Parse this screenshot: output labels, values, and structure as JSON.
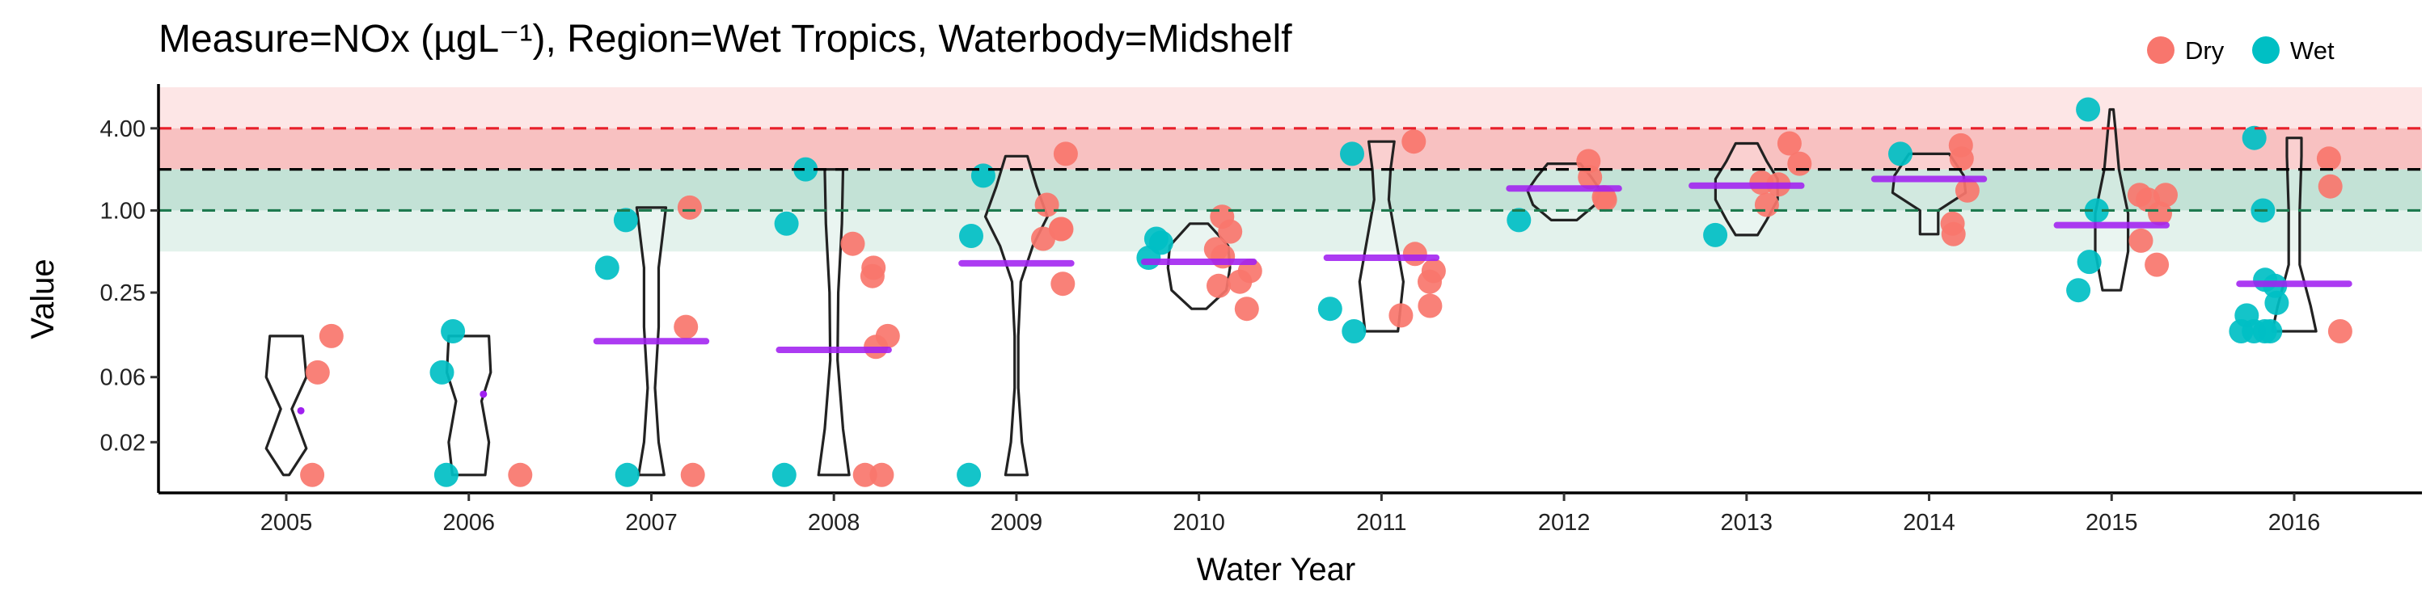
{
  "chart_data": {
    "type": "scatter",
    "title": "Measure=NOx (µgL⁻¹), Region=Wet Tropics, Waterbody=Midshelf",
    "xlabel": "Water Year",
    "ylabel": "Value",
    "y_scale": "log2",
    "ylim": [
      0.0085,
      8.0
    ],
    "y_ticks": [
      0.02,
      0.06,
      0.25,
      1.0,
      4.0
    ],
    "y_tick_labels": [
      "0.02",
      "0.06",
      "0.25",
      "1.00",
      "4.00"
    ],
    "categories": [
      "2005",
      "2006",
      "2007",
      "2008",
      "2009",
      "2010",
      "2011",
      "2012",
      "2013",
      "2014",
      "2015",
      "2016"
    ],
    "legend": {
      "position": "top-right",
      "entries": [
        "Dry",
        "Wet"
      ]
    },
    "colors": {
      "Dry": "#F8766D",
      "Wet": "#00BFC4",
      "mean": "#A020F0",
      "violin": "#222222",
      "band_red": "#F8C4C4",
      "band_green": "#CBE6DC",
      "line_red": "#E8202A",
      "line_black": "#000000",
      "line_green": "#1E7A4F"
    },
    "reference_lines": [
      {
        "value": 4.0,
        "style": "dashed",
        "color": "red"
      },
      {
        "value": 2.0,
        "style": "dashed",
        "color": "black"
      },
      {
        "value": 1.0,
        "style": "dashed",
        "color": "green"
      }
    ],
    "bands": [
      {
        "from": 2.0,
        "to": 8.0,
        "color": "light-red"
      },
      {
        "from": 2.0,
        "to": 4.0,
        "color": "red"
      },
      {
        "from": 1.0,
        "to": 2.0,
        "color": "green"
      },
      {
        "from": 0.5,
        "to": 1.0,
        "color": "light-green"
      }
    ],
    "series": [
      {
        "name": "Dry",
        "points": [
          [
            "2005",
            0.12
          ],
          [
            "2005",
            0.065
          ],
          [
            "2005",
            0.0115
          ],
          [
            "2006",
            0.0115
          ],
          [
            "2007",
            1.05
          ],
          [
            "2007",
            0.14
          ],
          [
            "2007",
            0.0115
          ],
          [
            "2008",
            0.38
          ],
          [
            "2008",
            0.33
          ],
          [
            "2008",
            0.12
          ],
          [
            "2008",
            0.1
          ],
          [
            "2008",
            0.57
          ],
          [
            "2008",
            0.0115
          ],
          [
            "2008",
            0.0115
          ],
          [
            "2009",
            2.6
          ],
          [
            "2009",
            1.1
          ],
          [
            "2009",
            0.73
          ],
          [
            "2009",
            0.73
          ],
          [
            "2009",
            0.62
          ],
          [
            "2009",
            0.29
          ],
          [
            "2010",
            0.9
          ],
          [
            "2010",
            0.46
          ],
          [
            "2010",
            0.36
          ],
          [
            "2010",
            0.3
          ],
          [
            "2010",
            0.7
          ],
          [
            "2010",
            0.52
          ],
          [
            "2010",
            0.28
          ],
          [
            "2010",
            0.19
          ],
          [
            "2011",
            3.2
          ],
          [
            "2011",
            0.48
          ],
          [
            "2011",
            0.2
          ],
          [
            "2011",
            0.17
          ],
          [
            "2011",
            0.36
          ],
          [
            "2011",
            0.3
          ],
          [
            "2012",
            2.3
          ],
          [
            "2012",
            1.75
          ],
          [
            "2012",
            1.2
          ],
          [
            "2012",
            1.25
          ],
          [
            "2013",
            3.1
          ],
          [
            "2013",
            2.2
          ],
          [
            "2013",
            1.6
          ],
          [
            "2013",
            1.1
          ],
          [
            "2013",
            1.55
          ],
          [
            "2014",
            3.0
          ],
          [
            "2014",
            2.4
          ],
          [
            "2014",
            0.8
          ],
          [
            "2014",
            1.4
          ],
          [
            "2014",
            0.67
          ],
          [
            "2015",
            0.6
          ],
          [
            "2015",
            0.4
          ],
          [
            "2015",
            1.3
          ],
          [
            "2015",
            1.2
          ],
          [
            "2015",
            0.95
          ],
          [
            "2015",
            1.3
          ],
          [
            "2016",
            2.4
          ],
          [
            "2016",
            1.5
          ],
          [
            "2016",
            0.13
          ]
        ]
      },
      {
        "name": "Wet",
        "points": [
          [
            "2006",
            0.13
          ],
          [
            "2006",
            0.065
          ],
          [
            "2006",
            0.0115
          ],
          [
            "2007",
            0.85
          ],
          [
            "2007",
            0.38
          ],
          [
            "2007",
            0.0115
          ],
          [
            "2008",
            2.0
          ],
          [
            "2008",
            0.8
          ],
          [
            "2008",
            0.0115
          ],
          [
            "2009",
            1.8
          ],
          [
            "2009",
            0.65
          ],
          [
            "2009",
            0.0115
          ],
          [
            "2010",
            0.58
          ],
          [
            "2010",
            0.45
          ],
          [
            "2010",
            0.62
          ],
          [
            "2011",
            2.6
          ],
          [
            "2011",
            0.19
          ],
          [
            "2011",
            0.13
          ],
          [
            "2012",
            0.85
          ],
          [
            "2013",
            0.66
          ],
          [
            "2014",
            2.6
          ],
          [
            "2015",
            5.5
          ],
          [
            "2015",
            1.0
          ],
          [
            "2015",
            0.42
          ],
          [
            "2015",
            0.26
          ],
          [
            "2016",
            3.4
          ],
          [
            "2016",
            1.0
          ],
          [
            "2016",
            0.28
          ],
          [
            "2016",
            0.21
          ],
          [
            "2016",
            0.31
          ],
          [
            "2016",
            0.17
          ],
          [
            "2016",
            0.13
          ],
          [
            "2016",
            0.13
          ],
          [
            "2016",
            0.13
          ],
          [
            "2016",
            0.13
          ]
        ]
      }
    ],
    "means": [
      {
        "category": "2005",
        "value": 0.034,
        "style": "dot"
      },
      {
        "category": "2006",
        "value": 0.045,
        "style": "dot"
      },
      {
        "category": "2007",
        "value": 0.11,
        "style": "bar"
      },
      {
        "category": "2008",
        "value": 0.095,
        "style": "bar"
      },
      {
        "category": "2009",
        "value": 0.41,
        "style": "bar"
      },
      {
        "category": "2010",
        "value": 0.42,
        "style": "bar"
      },
      {
        "category": "2011",
        "value": 0.45,
        "style": "bar"
      },
      {
        "category": "2012",
        "value": 1.45,
        "style": "bar"
      },
      {
        "category": "2013",
        "value": 1.52,
        "style": "bar"
      },
      {
        "category": "2014",
        "value": 1.7,
        "style": "bar"
      },
      {
        "category": "2015",
        "value": 0.78,
        "style": "bar"
      },
      {
        "category": "2016",
        "value": 0.29,
        "style": "bar"
      }
    ],
    "violins": [
      {
        "category": "2005",
        "profile": [
          [
            0.0115,
            0.08
          ],
          [
            0.018,
            0.55
          ],
          [
            0.035,
            0.15
          ],
          [
            0.06,
            0.55
          ],
          [
            0.12,
            0.45
          ]
        ]
      },
      {
        "category": "2006",
        "profile": [
          [
            0.0115,
            0.45
          ],
          [
            0.02,
            0.55
          ],
          [
            0.04,
            0.35
          ],
          [
            0.065,
            0.6
          ],
          [
            0.12,
            0.55
          ]
        ]
      },
      {
        "category": "2007",
        "profile": [
          [
            0.0115,
            0.35
          ],
          [
            0.02,
            0.2
          ],
          [
            0.05,
            0.1
          ],
          [
            0.14,
            0.2
          ],
          [
            0.38,
            0.2
          ],
          [
            1.05,
            0.4
          ]
        ]
      },
      {
        "category": "2008",
        "profile": [
          [
            0.0115,
            0.42
          ],
          [
            0.025,
            0.25
          ],
          [
            0.08,
            0.1
          ],
          [
            0.25,
            0.12
          ],
          [
            0.8,
            0.22
          ],
          [
            2.0,
            0.25
          ]
        ]
      },
      {
        "category": "2009",
        "profile": [
          [
            0.0115,
            0.3
          ],
          [
            0.02,
            0.15
          ],
          [
            0.05,
            0.05
          ],
          [
            0.12,
            0.05
          ],
          [
            0.3,
            0.12
          ],
          [
            0.55,
            0.45
          ],
          [
            0.9,
            0.85
          ],
          [
            1.5,
            0.55
          ],
          [
            2.5,
            0.3
          ]
        ]
      },
      {
        "category": "2010",
        "profile": [
          [
            0.19,
            0.2
          ],
          [
            0.26,
            0.75
          ],
          [
            0.38,
            0.85
          ],
          [
            0.55,
            0.8
          ],
          [
            0.8,
            0.25
          ]
        ]
      },
      {
        "category": "2011",
        "profile": [
          [
            0.13,
            0.45
          ],
          [
            0.3,
            0.6
          ],
          [
            0.6,
            0.4
          ],
          [
            1.2,
            0.2
          ],
          [
            2.0,
            0.25
          ],
          [
            3.2,
            0.35
          ]
        ]
      },
      {
        "category": "2012",
        "profile": [
          [
            0.85,
            0.35
          ],
          [
            1.1,
            0.85
          ],
          [
            1.4,
            1.0
          ],
          [
            1.75,
            0.75
          ],
          [
            2.2,
            0.45
          ]
        ]
      },
      {
        "category": "2013",
        "profile": [
          [
            0.66,
            0.3
          ],
          [
            0.85,
            0.55
          ],
          [
            1.2,
            0.85
          ],
          [
            1.7,
            0.85
          ],
          [
            2.3,
            0.55
          ],
          [
            3.1,
            0.3
          ]
        ]
      },
      {
        "category": "2014",
        "profile": [
          [
            0.67,
            0.25
          ],
          [
            1.0,
            0.25
          ],
          [
            1.35,
            1.0
          ],
          [
            1.8,
            0.95
          ],
          [
            2.6,
            0.55
          ]
        ]
      },
      {
        "category": "2015",
        "profile": [
          [
            0.26,
            0.25
          ],
          [
            0.5,
            0.45
          ],
          [
            0.95,
            0.45
          ],
          [
            2.0,
            0.2
          ],
          [
            4.0,
            0.1
          ],
          [
            5.5,
            0.05
          ]
        ]
      },
      {
        "category": "2016",
        "profile": [
          [
            0.13,
            0.6
          ],
          [
            0.2,
            0.45
          ],
          [
            0.4,
            0.15
          ],
          [
            1.0,
            0.15
          ],
          [
            2.5,
            0.2
          ],
          [
            3.4,
            0.2
          ]
        ]
      }
    ]
  }
}
